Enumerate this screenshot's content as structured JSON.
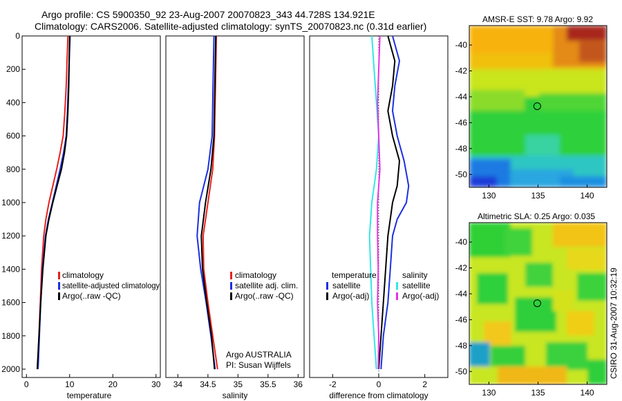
{
  "figure": {
    "title_line1": "Argo profile: CS 5900350_92 23-Aug-2007 20070823_343 44.728S 134.921E",
    "title_line2": "Climatology: CARS2006. Satellite-adjusted climatology: synTS_20070823.nc (0.31d earlier)",
    "credit_line1": "Argo AUSTRALIA",
    "credit_line2": "PI: Susan Wijffels",
    "side_stamp": "CSIRO 31-Aug-2007 10:32:19"
  },
  "colors": {
    "climatology": "#e8201a",
    "satellite_adjusted": "#1a2fe0",
    "argo": "#000000",
    "temperature_satellite": "#1a2fe0",
    "salinity_satellite": "#33e6e6",
    "salinity_argo": "#e633e6"
  },
  "chart_data": [
    {
      "type": "line",
      "xlabel": "temperature",
      "ylabel": "",
      "xlim": [
        -1,
        31
      ],
      "ylim": [
        2050,
        0
      ],
      "xticks": [
        "0",
        "10",
        "20",
        "30"
      ],
      "xtick_values": [
        0,
        10,
        20,
        30
      ],
      "yticks": [
        "0",
        "200",
        "400",
        "600",
        "800",
        "1000",
        "1200",
        "1400",
        "1600",
        "1800",
        "2000"
      ],
      "ytick_values": [
        0,
        200,
        400,
        600,
        800,
        1000,
        1200,
        1400,
        1600,
        1800,
        2000
      ],
      "legend_placement": "lower-right",
      "series": [
        {
          "name": "climatology",
          "color": "climatology",
          "points": [
            [
              9.6,
              0
            ],
            [
              9.4,
              150
            ],
            [
              9.2,
              300
            ],
            [
              8.9,
              450
            ],
            [
              8.5,
              600
            ],
            [
              7.8,
              700
            ],
            [
              7.0,
              800
            ],
            [
              6.1,
              900
            ],
            [
              5.2,
              1000
            ],
            [
              4.5,
              1100
            ],
            [
              4.0,
              1200
            ],
            [
              3.5,
              1400
            ],
            [
              3.2,
              1600
            ],
            [
              2.9,
              1800
            ],
            [
              2.6,
              2000
            ]
          ]
        },
        {
          "name": "satellite-adjusted climatology",
          "color": "satellite_adjusted",
          "points": [
            [
              10.1,
              0
            ],
            [
              9.9,
              150
            ],
            [
              9.7,
              300
            ],
            [
              9.5,
              450
            ],
            [
              9.2,
              600
            ],
            [
              8.6,
              700
            ],
            [
              7.8,
              800
            ],
            [
              6.9,
              900
            ],
            [
              6.0,
              1000
            ],
            [
              5.1,
              1100
            ],
            [
              4.4,
              1200
            ],
            [
              3.7,
              1400
            ],
            [
              3.3,
              1600
            ],
            [
              3.0,
              1800
            ],
            [
              2.7,
              2000
            ]
          ]
        },
        {
          "name": "Argo(..raw -QC)",
          "color": "argo",
          "points": [
            [
              10.0,
              0
            ],
            [
              9.9,
              150
            ],
            [
              9.8,
              300
            ],
            [
              9.6,
              450
            ],
            [
              9.3,
              600
            ],
            [
              8.8,
              700
            ],
            [
              8.1,
              800
            ],
            [
              7.1,
              900
            ],
            [
              6.1,
              1000
            ],
            [
              5.2,
              1100
            ],
            [
              4.5,
              1200
            ],
            [
              3.8,
              1400
            ],
            [
              3.3,
              1600
            ],
            [
              2.9,
              1800
            ],
            [
              2.5,
              2000
            ]
          ]
        }
      ]
    },
    {
      "type": "line",
      "xlabel": "salinity",
      "ylabel": "",
      "xlim": [
        33.8,
        36.1
      ],
      "ylim": [
        2050,
        0
      ],
      "xticks": [
        "34",
        "34.5",
        "35",
        "35.5",
        "36"
      ],
      "xtick_values": [
        34,
        34.5,
        35,
        35.5,
        36
      ],
      "legend_placement": "lower-right",
      "series": [
        {
          "name": "climatology",
          "color": "climatology",
          "points": [
            [
              34.64,
              0
            ],
            [
              34.63,
              200
            ],
            [
              34.62,
              400
            ],
            [
              34.61,
              600
            ],
            [
              34.58,
              800
            ],
            [
              34.5,
              1000
            ],
            [
              34.42,
              1200
            ],
            [
              34.43,
              1400
            ],
            [
              34.5,
              1600
            ],
            [
              34.58,
              1800
            ],
            [
              34.66,
              2000
            ]
          ]
        },
        {
          "name": "satellite adj. clim.",
          "color": "satellite_adjusted",
          "points": [
            [
              34.6,
              0
            ],
            [
              34.59,
              200
            ],
            [
              34.58,
              400
            ],
            [
              34.57,
              600
            ],
            [
              34.5,
              800
            ],
            [
              34.36,
              1000
            ],
            [
              34.32,
              1200
            ],
            [
              34.38,
              1400
            ],
            [
              34.47,
              1600
            ],
            [
              34.55,
              1800
            ],
            [
              34.62,
              2000
            ]
          ]
        },
        {
          "name": "Argo(..raw -QC)",
          "color": "argo",
          "points": [
            [
              34.63,
              0
            ],
            [
              34.62,
              200
            ],
            [
              34.61,
              400
            ],
            [
              34.6,
              600
            ],
            [
              34.55,
              800
            ],
            [
              34.46,
              1000
            ],
            [
              34.39,
              1200
            ],
            [
              34.41,
              1400
            ],
            [
              34.48,
              1600
            ],
            [
              34.56,
              1800
            ],
            [
              34.61,
              2000
            ]
          ]
        }
      ]
    },
    {
      "type": "line",
      "xlabel": "difference from climatology",
      "ylabel": "",
      "xlim": [
        -3,
        3
      ],
      "ylim": [
        2050,
        0
      ],
      "xticks": [
        "-2",
        "0",
        "2"
      ],
      "xtick_values": [
        -2,
        0,
        2
      ],
      "legend_placement": "lower-center",
      "legend_groups": [
        {
          "heading": "temperature",
          "entries": [
            "satellite",
            "Argo(-adj)"
          ]
        },
        {
          "heading": "salinity",
          "entries": [
            "satellite",
            "Argo(-adj)"
          ]
        }
      ],
      "series": [
        {
          "name": "satellite",
          "group": "temperature",
          "color": "temperature_satellite",
          "points": [
            [
              0.6,
              0
            ],
            [
              0.9,
              150
            ],
            [
              0.7,
              300
            ],
            [
              0.6,
              450
            ],
            [
              0.8,
              600
            ],
            [
              1.1,
              750
            ],
            [
              1.3,
              900
            ],
            [
              1.2,
              1000
            ],
            [
              0.8,
              1100
            ],
            [
              0.6,
              1200
            ],
            [
              0.5,
              1400
            ],
            [
              0.4,
              1600
            ],
            [
              0.2,
              1800
            ],
            [
              0.1,
              2000
            ]
          ]
        },
        {
          "name": "Argo(-adj)",
          "group": "temperature",
          "color": "argo",
          "points": [
            [
              0.4,
              0
            ],
            [
              0.7,
              150
            ],
            [
              0.6,
              300
            ],
            [
              0.4,
              450
            ],
            [
              0.6,
              600
            ],
            [
              0.9,
              750
            ],
            [
              0.8,
              900
            ],
            [
              0.6,
              1000
            ],
            [
              0.5,
              1100
            ],
            [
              0.4,
              1200
            ],
            [
              0.3,
              1400
            ],
            [
              0.2,
              1600
            ],
            [
              0.1,
              1800
            ],
            [
              0.0,
              2000
            ]
          ]
        },
        {
          "name": "satellite",
          "group": "salinity",
          "color": "salinity_satellite",
          "points": [
            [
              -0.3,
              0
            ],
            [
              -0.2,
              200
            ],
            [
              -0.1,
              400
            ],
            [
              0.0,
              600
            ],
            [
              -0.1,
              800
            ],
            [
              -0.3,
              1000
            ],
            [
              -0.4,
              1200
            ],
            [
              -0.35,
              1400
            ],
            [
              -0.3,
              1600
            ],
            [
              -0.2,
              1800
            ],
            [
              -0.1,
              2000
            ]
          ]
        },
        {
          "name": "Argo(-adj)",
          "group": "salinity",
          "color": "salinity_argo",
          "points": [
            [
              0.05,
              0
            ],
            [
              0.0,
              200
            ],
            [
              -0.05,
              400
            ],
            [
              0.0,
              600
            ],
            [
              0.05,
              800
            ],
            [
              -0.05,
              1000
            ],
            [
              -0.05,
              1200
            ],
            [
              -0.02,
              1400
            ],
            [
              -0.05,
              1600
            ],
            [
              0.0,
              1800
            ],
            [
              -0.02,
              2000
            ]
          ]
        }
      ]
    },
    {
      "type": "heatmap",
      "title": "AMSR-E SST: 9.78 Argo: 9.92",
      "xlim": [
        128,
        142
      ],
      "ylim": [
        -51,
        -38.5
      ],
      "xticks": [
        "130",
        "135",
        "140"
      ],
      "xtick_values": [
        130,
        135,
        140
      ],
      "yticks": [
        "-40",
        "-42",
        "-44",
        "-46",
        "-48",
        "-50"
      ],
      "ytick_values": [
        -40,
        -42,
        -44,
        -46,
        -48,
        -50
      ],
      "marker": {
        "lon": 134.921,
        "lat": -44.728
      }
    },
    {
      "type": "heatmap",
      "title": "Altimetric SLA: 0.25 Argo: 0.035",
      "xlim": [
        128,
        142
      ],
      "ylim": [
        -51,
        -38.5
      ],
      "xticks": [
        "130",
        "135",
        "140"
      ],
      "xtick_values": [
        130,
        135,
        140
      ],
      "yticks": [
        "-40",
        "-42",
        "-44",
        "-46",
        "-48",
        "-50"
      ],
      "ytick_values": [
        -40,
        -42,
        -44,
        -46,
        -48,
        -50
      ],
      "marker": {
        "lon": 134.921,
        "lat": -44.728
      }
    }
  ]
}
